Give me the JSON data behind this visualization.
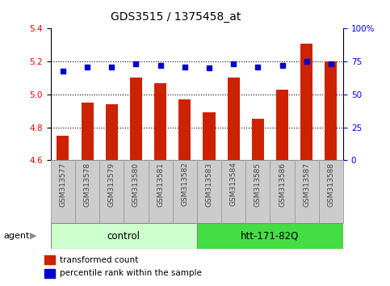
{
  "title": "GDS3515 / 1375458_at",
  "categories": [
    "GSM313577",
    "GSM313578",
    "GSM313579",
    "GSM313580",
    "GSM313581",
    "GSM313582",
    "GSM313583",
    "GSM313584",
    "GSM313585",
    "GSM313586",
    "GSM313587",
    "GSM313588"
  ],
  "bar_values": [
    4.75,
    4.95,
    4.94,
    5.1,
    5.07,
    4.97,
    4.89,
    5.1,
    4.85,
    5.03,
    5.31,
    5.2
  ],
  "percentile_values": [
    68,
    71,
    71,
    73,
    72,
    71,
    70,
    73,
    71,
    72,
    75,
    73
  ],
  "bar_color": "#cc2200",
  "percentile_color": "#0000cc",
  "ylim_left": [
    4.6,
    5.4
  ],
  "ylim_right": [
    0,
    100
  ],
  "yticks_left": [
    4.6,
    4.8,
    5.0,
    5.2,
    5.4
  ],
  "yticks_right": [
    0,
    25,
    50,
    75,
    100
  ],
  "ytick_labels_right": [
    "0",
    "25",
    "50",
    "75",
    "100%"
  ],
  "group_labels": [
    "control",
    "htt-171-82Q"
  ],
  "agent_label": "agent",
  "legend_bar": "transformed count",
  "legend_dot": "percentile rank within the sample",
  "control_color": "#ccffcc",
  "htt_color": "#44dd44",
  "bar_bottom": 4.6,
  "gridlines": [
    4.8,
    5.0,
    5.2
  ],
  "xlabel_bg": "#cccccc",
  "xlabel_border": "#999999",
  "title_fontsize": 10,
  "tick_fontsize": 7.5,
  "label_fontsize": 8
}
